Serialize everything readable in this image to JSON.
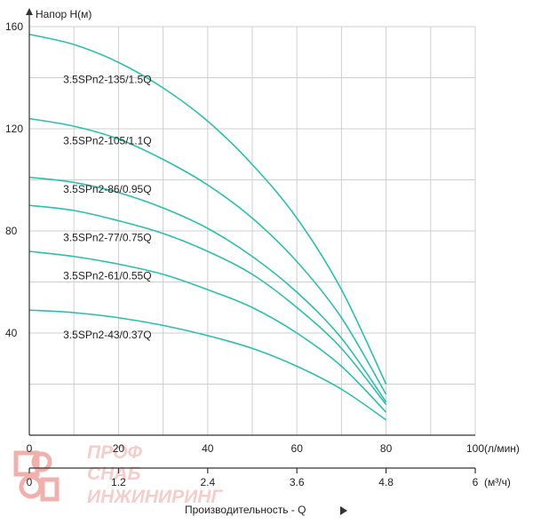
{
  "chart_data": {
    "type": "line",
    "ylabel": "Напор Н(м)",
    "xlabel": "Производительность - Q",
    "ylim": [
      0,
      160
    ],
    "yticks": [
      "160",
      "120",
      "80",
      "40"
    ],
    "xlim": [
      0,
      100
    ],
    "xticks_top": [
      "0",
      "20",
      "40",
      "60",
      "80",
      "100"
    ],
    "xunit_top": "(л/мин)",
    "xticks_bottom": [
      "0",
      "1.2",
      "2.4",
      "3.6",
      "4.8",
      "6"
    ],
    "xunit_bottom": "(м³/ч)",
    "grid": true,
    "line_color": "#2bbfae",
    "series": [
      {
        "name": "3.5SPn2-135/1.5Q",
        "label_at": [
          8,
          138
        ],
        "points": [
          [
            0,
            157
          ],
          [
            10,
            153
          ],
          [
            20,
            146
          ],
          [
            30,
            136
          ],
          [
            40,
            123
          ],
          [
            50,
            106
          ],
          [
            60,
            85
          ],
          [
            70,
            57
          ],
          [
            80,
            20
          ]
        ]
      },
      {
        "name": "3.5SPn2-105/1.1Q",
        "label_at": [
          8,
          114
        ],
        "points": [
          [
            0,
            124
          ],
          [
            10,
            121
          ],
          [
            20,
            116
          ],
          [
            30,
            108
          ],
          [
            40,
            98
          ],
          [
            50,
            85
          ],
          [
            60,
            68
          ],
          [
            70,
            46
          ],
          [
            80,
            16
          ]
        ]
      },
      {
        "name": "3.5SPn2-86/0.95Q",
        "label_at": [
          8,
          95
        ],
        "points": [
          [
            0,
            101
          ],
          [
            10,
            99
          ],
          [
            20,
            95
          ],
          [
            30,
            89
          ],
          [
            40,
            81
          ],
          [
            50,
            70
          ],
          [
            60,
            56
          ],
          [
            70,
            38
          ],
          [
            80,
            13
          ]
        ]
      },
      {
        "name": "3.5SPn2-77/0.75Q",
        "label_at": [
          8,
          76
        ],
        "points": [
          [
            0,
            90
          ],
          [
            10,
            88
          ],
          [
            20,
            84
          ],
          [
            30,
            79
          ],
          [
            40,
            72
          ],
          [
            50,
            63
          ],
          [
            60,
            50
          ],
          [
            70,
            34
          ],
          [
            80,
            12
          ]
        ]
      },
      {
        "name": "3.5SPn2-61/0.55Q",
        "label_at": [
          8,
          61
        ],
        "points": [
          [
            0,
            72
          ],
          [
            10,
            70
          ],
          [
            20,
            67
          ],
          [
            30,
            63
          ],
          [
            40,
            57
          ],
          [
            50,
            50
          ],
          [
            60,
            40
          ],
          [
            70,
            27
          ],
          [
            80,
            9
          ]
        ]
      },
      {
        "name": "3.5SPn2-43/0.37Q",
        "label_at": [
          8,
          38
        ],
        "points": [
          [
            0,
            49
          ],
          [
            10,
            48
          ],
          [
            20,
            46
          ],
          [
            30,
            43
          ],
          [
            40,
            39
          ],
          [
            50,
            34
          ],
          [
            60,
            27
          ],
          [
            70,
            18
          ],
          [
            80,
            6
          ]
        ]
      }
    ]
  },
  "watermark": {
    "line1": "ПРОФ",
    "line2": "СНАБ",
    "line3": "ИНЖИНИРИНГ",
    "color": "#e8716a"
  }
}
